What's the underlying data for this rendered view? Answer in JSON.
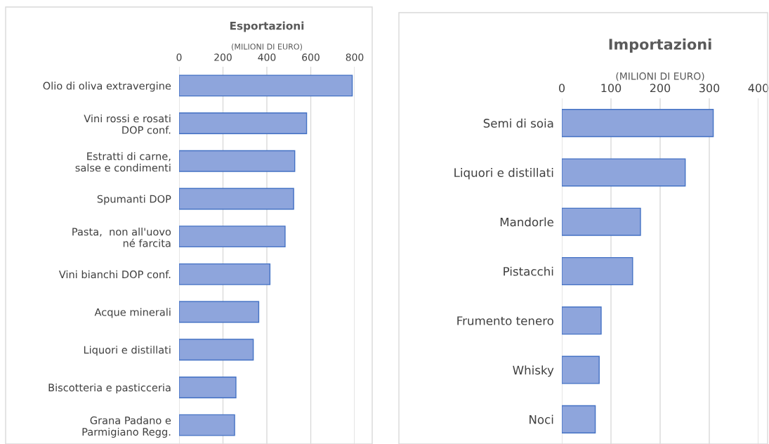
{
  "chart_data": [
    {
      "type": "bar",
      "orientation": "horizontal",
      "title": "Esportazioni",
      "xlabel": "(MILIONI DI EURO)",
      "categories": [
        "Olio di oliva extravergine",
        "Vini rossi e rosati\nDOP conf.",
        "Estratti di carne,\nsalse e condimenti",
        "Spumanti DOP",
        "Pasta,  non all'uovo\nné farcita",
        "Vini bianchi DOP conf.",
        "Acque minerali",
        "Liquori e distillati",
        "Biscotteria e pasticceria",
        "Grana Padano e\nParmigiano Regg."
      ],
      "values": [
        789,
        581,
        527,
        522,
        483,
        414,
        363,
        338,
        259,
        253
      ],
      "color": "#8ea5dc",
      "xlim": [
        0,
        800
      ],
      "xticks": [
        0,
        200,
        400,
        600,
        800
      ],
      "grid": "x"
    },
    {
      "type": "bar",
      "orientation": "horizontal",
      "title": "Importazioni",
      "xlabel": "(MILIONI DI EURO)",
      "categories": [
        "Semi di soia",
        "Liquori e distillati",
        "Mandorle",
        "Pistacchi",
        "Frumento tenero",
        "Whisky",
        "Noci"
      ],
      "values": [
        308,
        251,
        160,
        144,
        80,
        76,
        68
      ],
      "color": "#8ea5dc",
      "xlim": [
        0,
        400
      ],
      "xticks": [
        0,
        100,
        200,
        300,
        400
      ],
      "grid": "x"
    }
  ]
}
